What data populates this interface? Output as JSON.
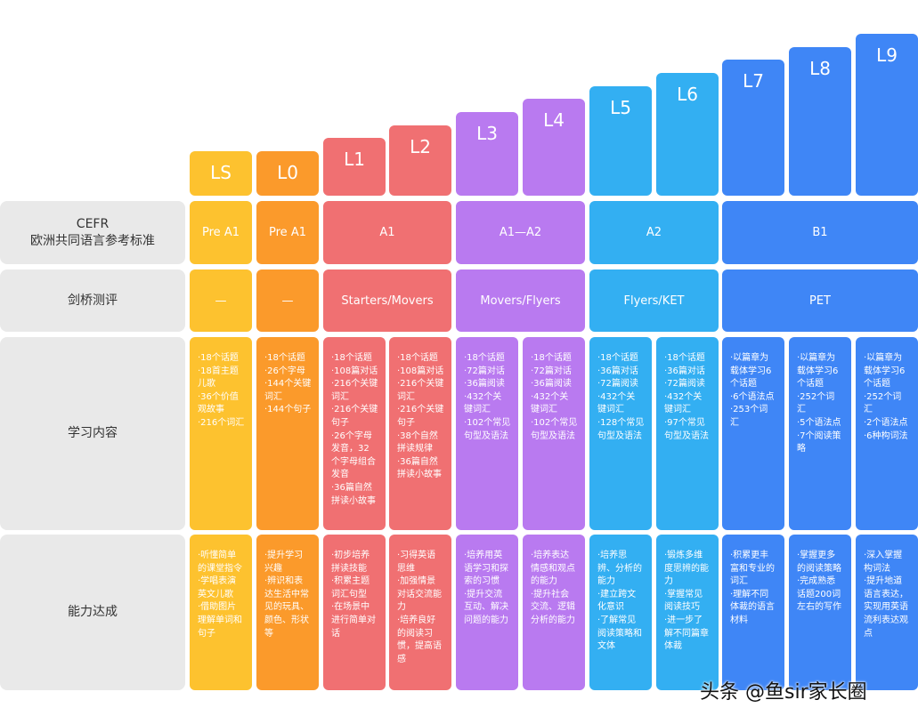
{
  "colors": {
    "yellow": "#fdc22f",
    "orange": "#fb9a2b",
    "red": "#f07072",
    "purple": "#b97af0",
    "cyan": "#33aff2",
    "blue": "#3f86f6",
    "row_label_bg": "#e9e9e9"
  },
  "row_labels": {
    "cefr": "CEFR\n欧洲共同语言参考标准",
    "cambridge": "剑桥测评",
    "content": "学习内容",
    "ability": "能力达成"
  },
  "levels": [
    "LS",
    "L0",
    "L1",
    "L2",
    "L3",
    "L4",
    "L5",
    "L6",
    "L7",
    "L8",
    "L9"
  ],
  "cefr": [
    "Pre A1",
    "Pre A1",
    "A1",
    "A1—A2",
    "A2",
    "B1"
  ],
  "cambridge": [
    "—",
    "—",
    "Starters/Movers",
    "Movers/Flyers",
    "Flyers/KET",
    "PET"
  ],
  "content": [
    "·18个话题\n·18首主题\n儿歌\n·36个价值\n观故事\n·216个词汇",
    "·18个话题\n·26个字母\n·144个关键\n词汇\n·144个句子",
    "·18个话题\n·108篇对话\n·216个关键\n词汇\n·216个关键\n句子\n·26个字母\n发音，32\n个字母组合\n发音\n·36篇自然\n拼读小故事",
    "·18个话题\n·108篇对话\n·216个关键\n词汇\n·216个关键\n句子\n·38个自然\n拼读规律\n·36篇自然\n拼读小故事",
    "·18个话题\n·72篇对话\n·36篇阅读\n·432个关\n键词汇\n·102个常见\n句型及语法",
    "·18个话题\n·72篇对话\n·36篇阅读\n·432个关\n键词汇\n·102个常见\n句型及语法",
    "·18个话题\n·36篇对话\n·72篇阅读\n·432个关\n键词汇\n·128个常见\n句型及语法",
    "·18个话题\n·36篇对话\n·72篇阅读\n·432个关\n键词汇\n·97个常见\n句型及语法",
    "·以篇章为\n载体学习6\n个话题\n·6个语法点\n·253个词\n汇",
    "·以篇章为\n载体学习6\n个话题\n·252个词\n汇\n·5个语法点\n·7个阅读策\n略",
    "·以篇章为\n载体学习6\n个话题\n·252个词\n汇\n·2个语法点\n·6种构词法"
  ],
  "ability": [
    "·听懂简单\n的课堂指令\n·学唱表演\n英文儿歌\n·借助图片\n理解单词和\n句子",
    "·提升学习\n兴趣\n·辨识和表\n达生活中常\n见的玩具、\n颜色、形状\n等",
    "·初步培养\n拼读技能\n·积累主题\n词汇句型\n·在场景中\n进行简单对\n话",
    "·习得英语\n思维\n·加强情景\n对话交流能\n力\n·培养良好\n的阅读习\n惯，提高语\n感",
    "·培养用英\n语学习和探\n索的习惯\n·提升交流\n互动、解决\n问题的能力",
    "·培养表达\n情感和观点\n的能力\n·提升社会\n交流、逻辑\n分析的能力",
    "·培养思\n辨、分析的\n能力\n·建立跨文\n化意识\n·了解常见\n阅读策略和\n文体",
    "·锻炼多维\n度思辨的能\n力\n·掌握常见\n阅读技巧\n·进一步了\n解不同篇章\n体裁",
    "·积累更丰\n富和专业的\n词汇\n·理解不同\n体裁的语言\n材料",
    "·掌握更多\n的阅读策略\n·完成熟悉\n话题200词\n左右的写作",
    "·深入掌握\n构词法\n·提升地道\n语言表达，\n实现用英语\n流利表达观\n点"
  ],
  "watermark": "头条 @鱼sir家长圈"
}
